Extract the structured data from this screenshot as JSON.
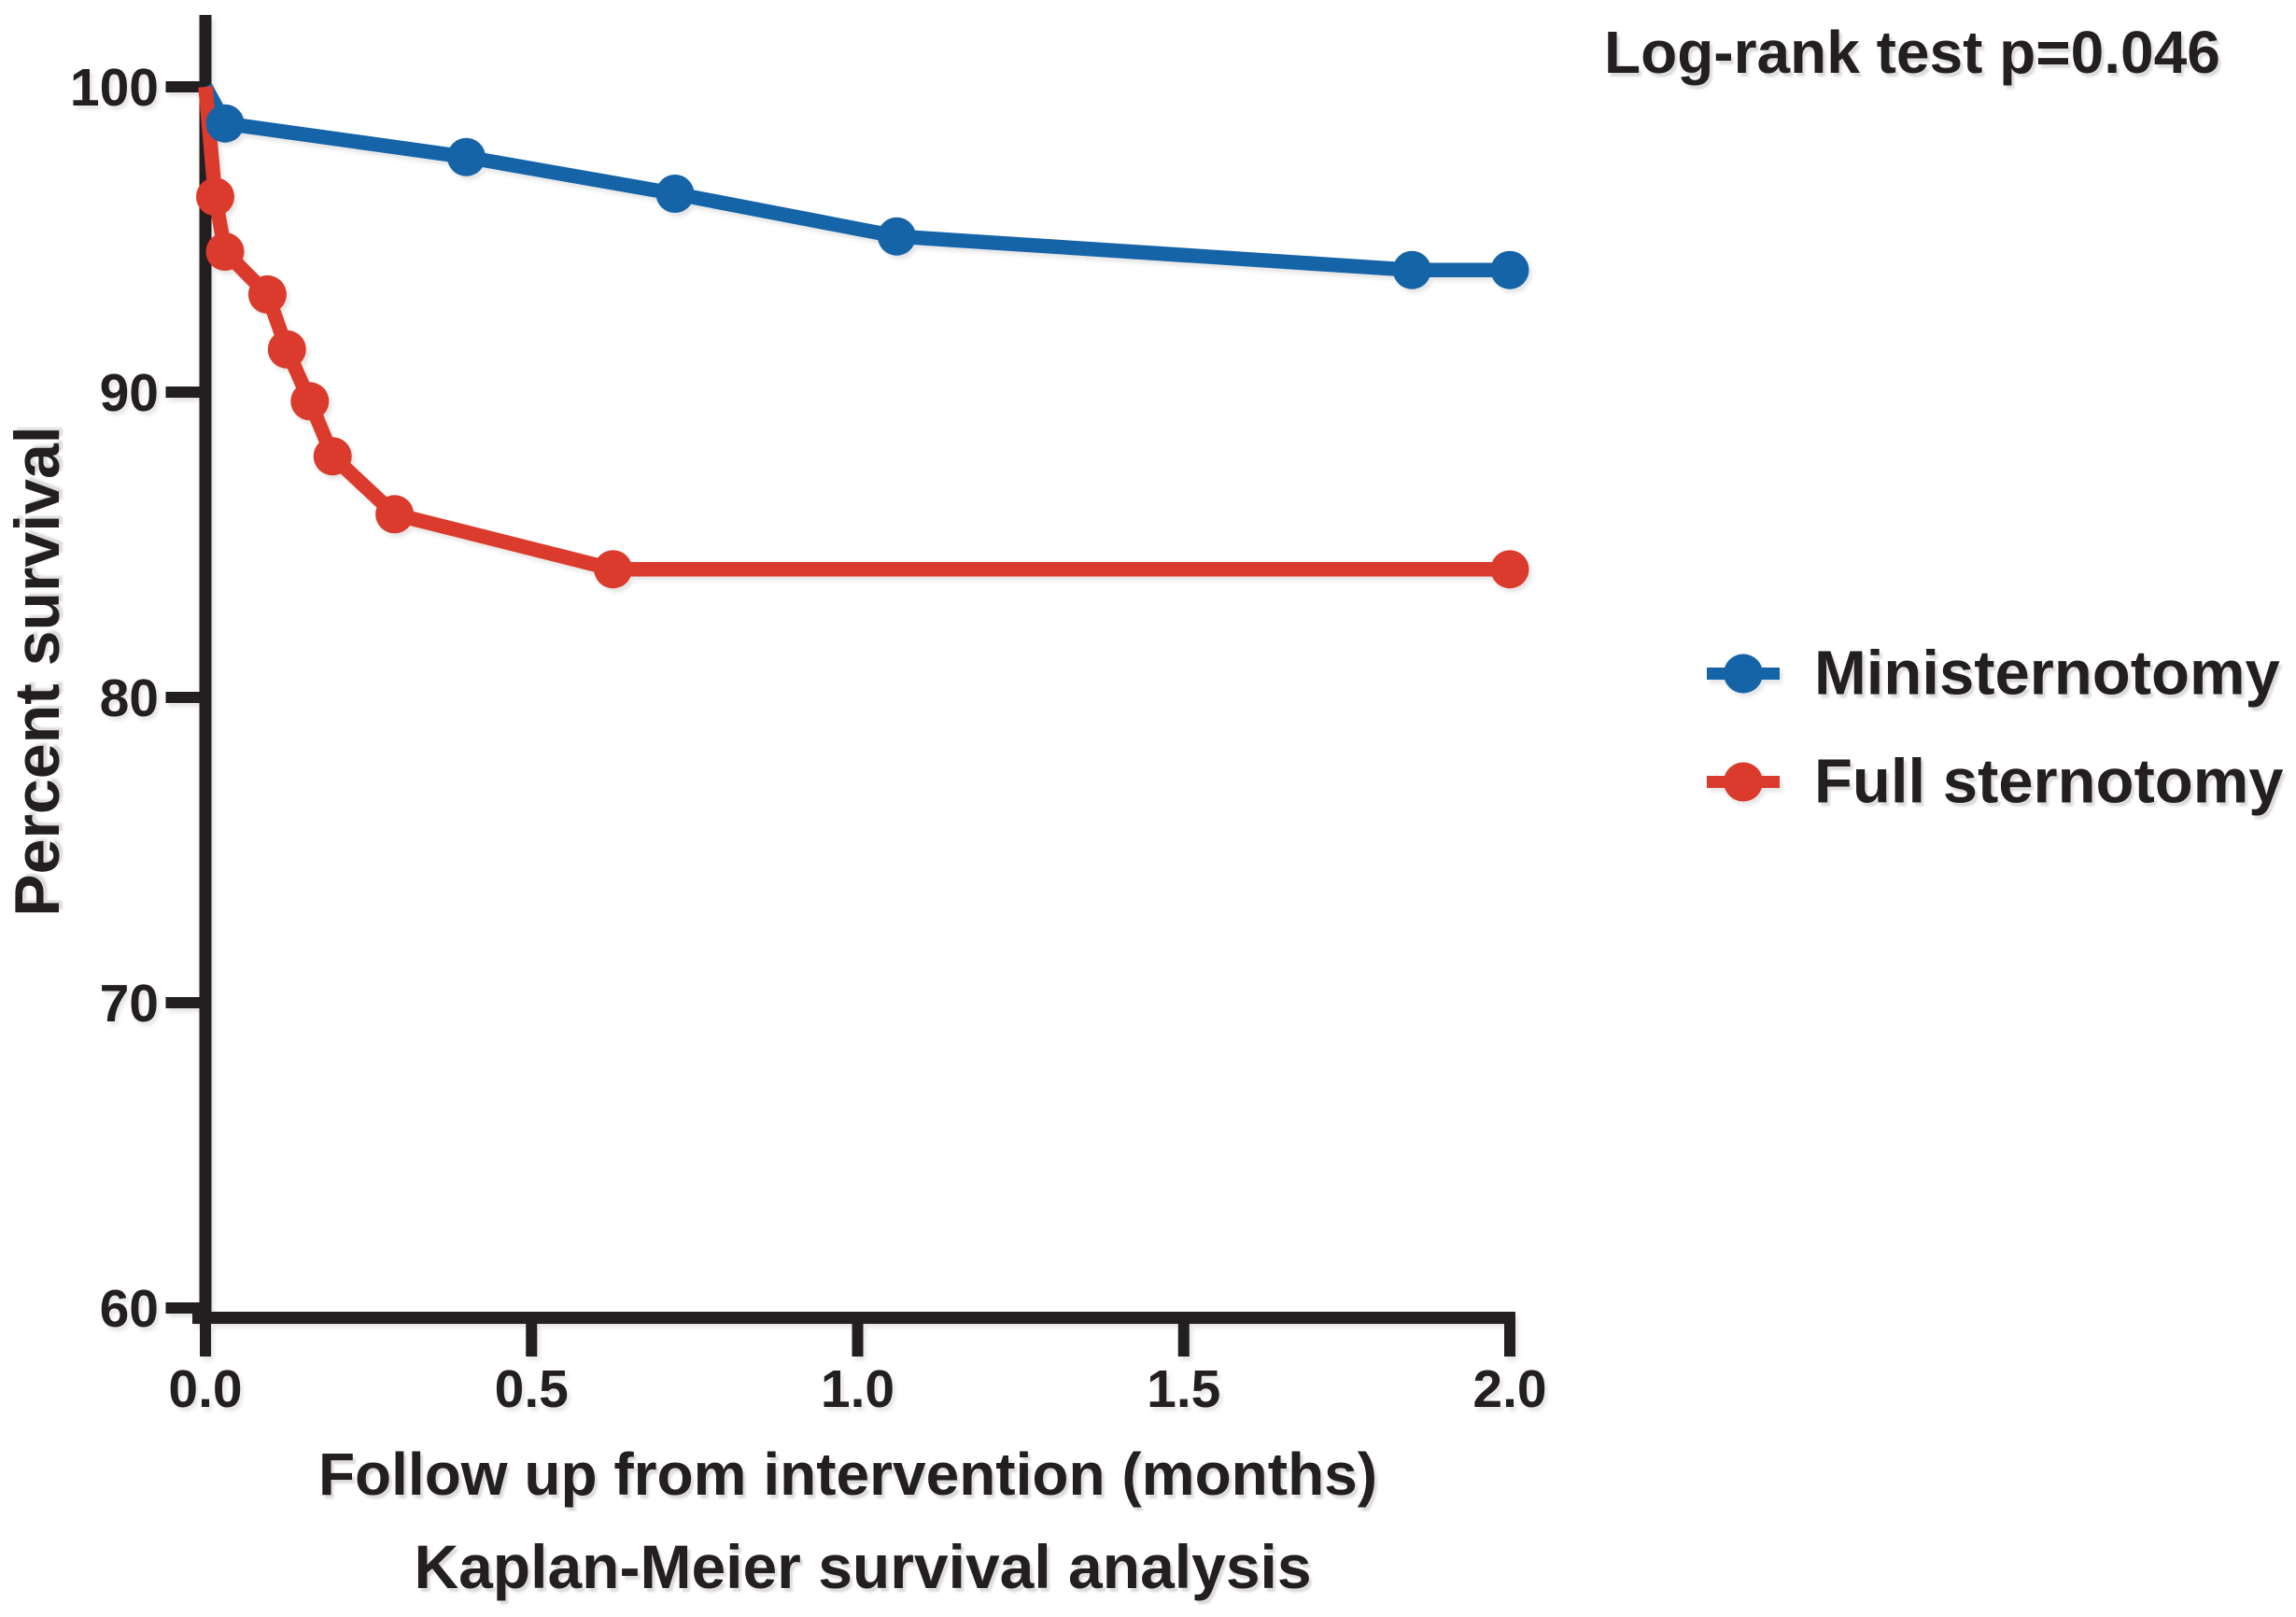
{
  "chart_data": {
    "type": "line",
    "title": "Kaplan-Meier survival analysis",
    "xlabel": "Follow up from intervention (months)",
    "ylabel": "Percent survival",
    "annotation": "Log-rank test p=0.046",
    "xlim": [
      0.0,
      2.0
    ],
    "ylim": [
      60,
      100
    ],
    "grid": false,
    "legend_position": "right",
    "axis_color": "#231f20",
    "text_color": "#231f20",
    "x_ticks": {
      "values": [
        0.0,
        0.5,
        1.0,
        1.5,
        2.0
      ],
      "labels": [
        "0.0",
        "0.5",
        "1.0",
        "1.5",
        "2.0"
      ]
    },
    "y_ticks": {
      "values": [
        100,
        90,
        80,
        70,
        60
      ],
      "labels": [
        "100",
        "90",
        "80",
        "70",
        "60"
      ]
    },
    "series": [
      {
        "name": "Ministernotomy",
        "color": "#1564a8",
        "points": [
          [
            0,
            100
          ],
          [
            0.03,
            98.8
          ],
          [
            0.4,
            97.7
          ],
          [
            0.72,
            96.5
          ],
          [
            1.06,
            95.1
          ],
          [
            1.85,
            94.0
          ],
          [
            2.0,
            94.0
          ]
        ],
        "markers": [
          [
            0.03,
            98.8
          ],
          [
            0.4,
            97.7
          ],
          [
            0.72,
            96.5
          ],
          [
            1.06,
            95.1
          ],
          [
            1.85,
            94.0
          ],
          [
            2.0,
            94.0
          ]
        ]
      },
      {
        "name": "Full sternotomy",
        "color": "#da3b2c",
        "points": [
          [
            0,
            100
          ],
          [
            0.015,
            96.4
          ],
          [
            0.03,
            94.6
          ],
          [
            0.095,
            93.2
          ],
          [
            0.125,
            91.4
          ],
          [
            0.16,
            89.7
          ],
          [
            0.195,
            87.9
          ],
          [
            0.29,
            86.0
          ],
          [
            0.625,
            84.2
          ],
          [
            2.0,
            84.2
          ]
        ],
        "markers": [
          [
            0.015,
            96.4
          ],
          [
            0.03,
            94.6
          ],
          [
            0.095,
            93.2
          ],
          [
            0.125,
            91.4
          ],
          [
            0.16,
            89.7
          ],
          [
            0.195,
            87.9
          ],
          [
            0.29,
            86.0
          ],
          [
            0.625,
            84.2
          ],
          [
            2.0,
            84.2
          ]
        ]
      }
    ]
  }
}
